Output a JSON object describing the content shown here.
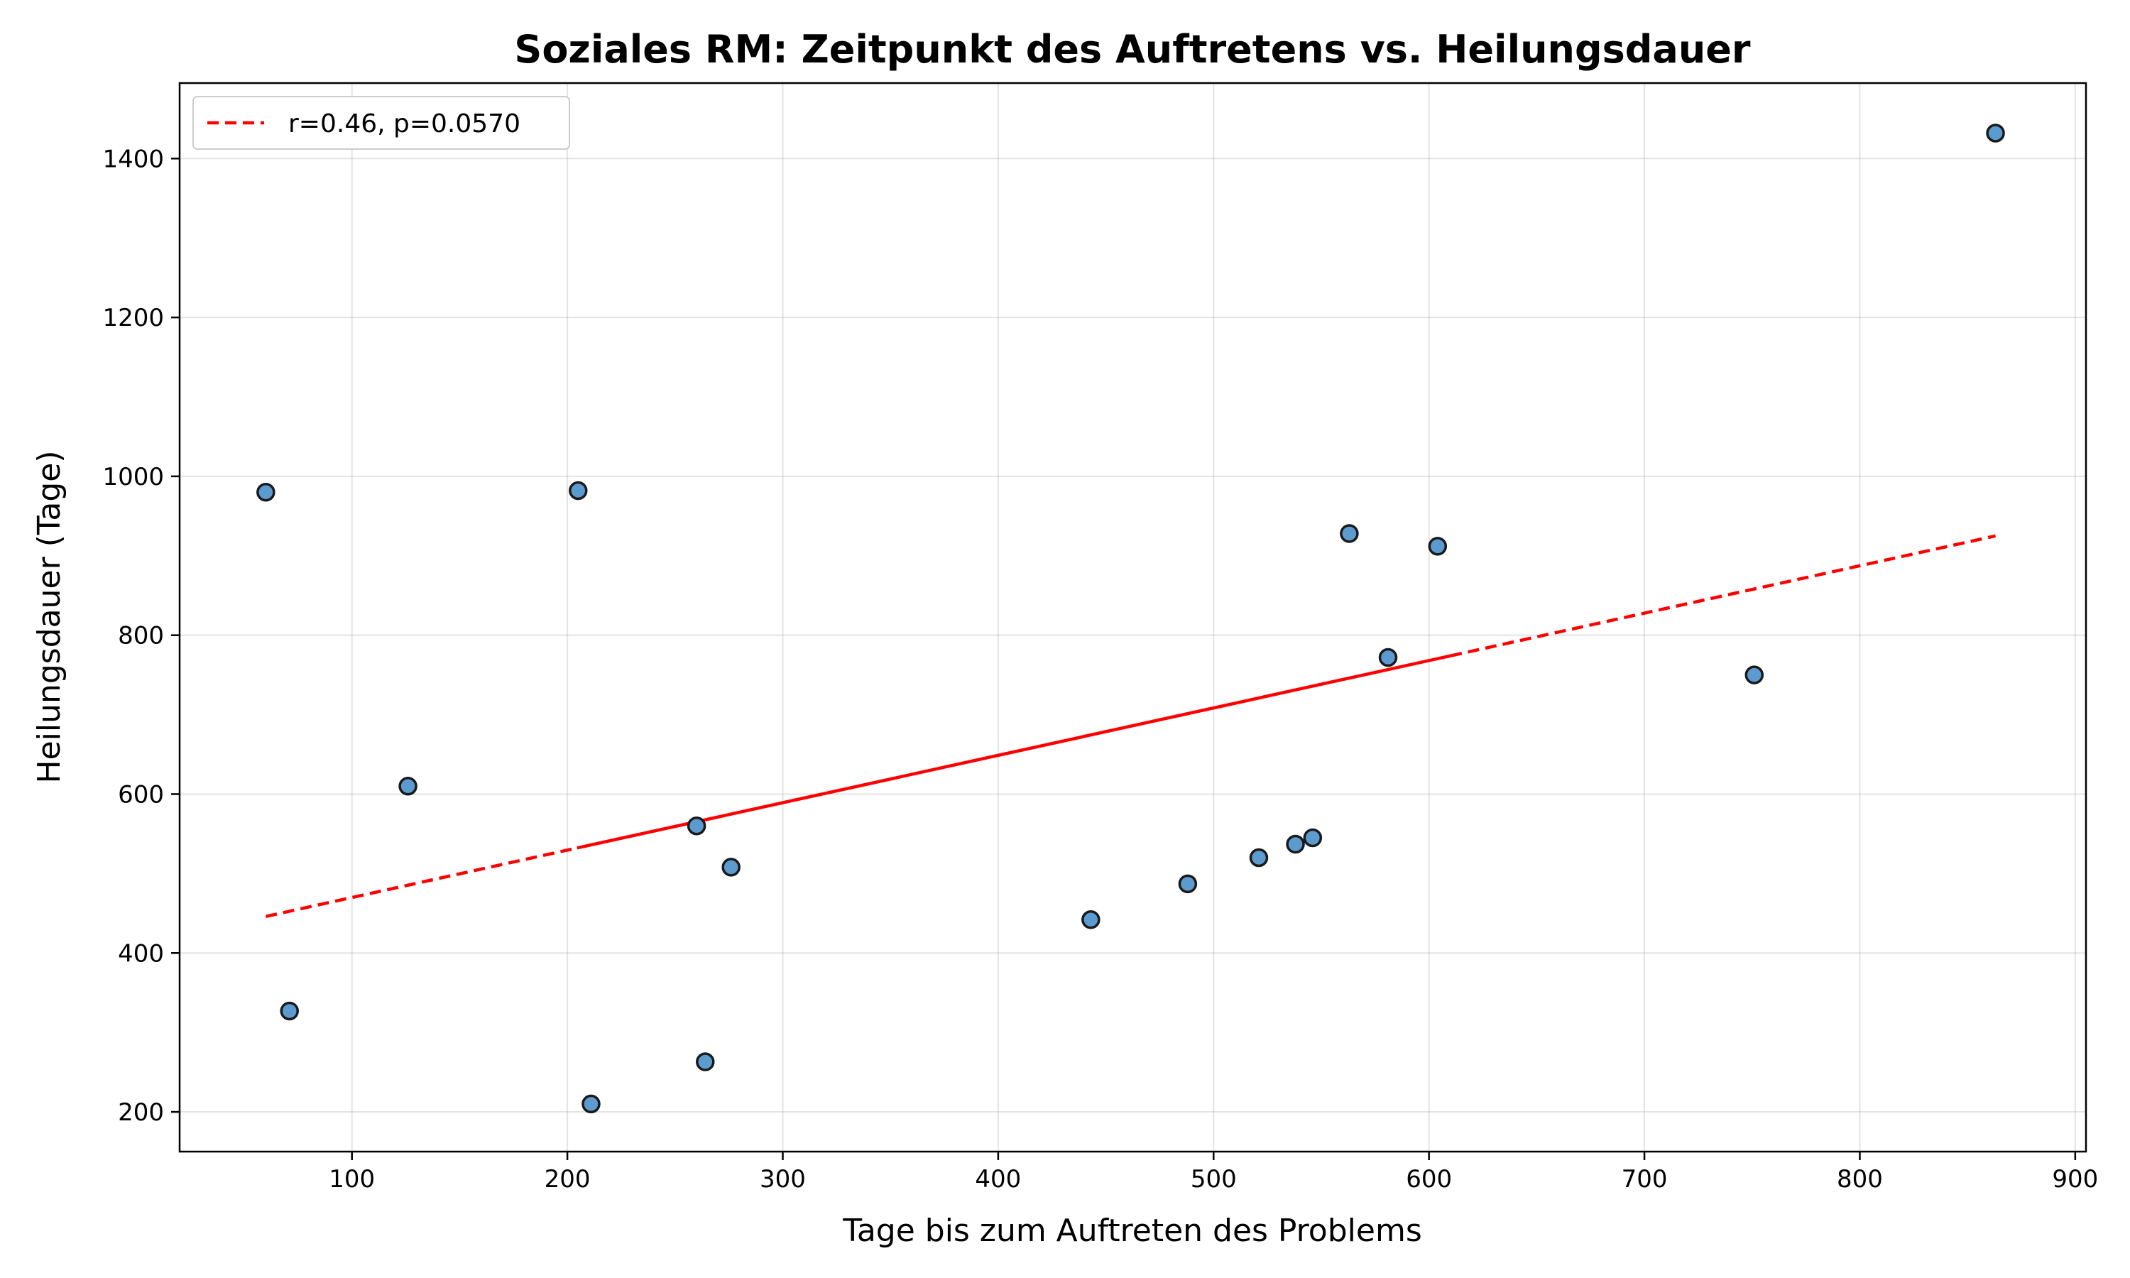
{
  "chart_data": {
    "type": "scatter",
    "title": "Soziales RM: Zeitpunkt des Auftretens vs. Heilungsdauer",
    "xlabel": "Tage bis zum Auftreten des Problems",
    "ylabel": "Heilungsdauer (Tage)",
    "xlim": [
      20,
      905
    ],
    "ylim": [
      150,
      1495
    ],
    "xticks": [
      100,
      200,
      300,
      400,
      500,
      600,
      700,
      800,
      900
    ],
    "yticks": [
      200,
      400,
      600,
      800,
      1000,
      1200,
      1400
    ],
    "grid": true,
    "legend_position": "top-left",
    "colors": {
      "points": "#5b9bd0",
      "point_edge": "#1a1a1a",
      "fit_line": "#ff0000"
    },
    "series": [
      {
        "values": [
          {
            "x": 60,
            "y": 980
          },
          {
            "x": 71,
            "y": 327
          },
          {
            "x": 126,
            "y": 610
          },
          {
            "x": 205,
            "y": 982
          },
          {
            "x": 211,
            "y": 210
          },
          {
            "x": 260,
            "y": 560
          },
          {
            "x": 264,
            "y": 263
          },
          {
            "x": 276,
            "y": 508
          },
          {
            "x": 443,
            "y": 442
          },
          {
            "x": 488,
            "y": 487
          },
          {
            "x": 521,
            "y": 520
          },
          {
            "x": 538,
            "y": 537
          },
          {
            "x": 546,
            "y": 545
          },
          {
            "x": 563,
            "y": 928
          },
          {
            "x": 581,
            "y": 772
          },
          {
            "x": 604,
            "y": 912
          },
          {
            "x": 751,
            "y": 750
          },
          {
            "x": 863,
            "y": 1432
          }
        ]
      },
      {
        "name": "r=0.46, p=0.0570",
        "kind": "fit-line",
        "style": "dashed",
        "values": [
          {
            "x": 60,
            "y": 446
          },
          {
            "x": 863,
            "y": 925
          }
        ]
      }
    ]
  }
}
